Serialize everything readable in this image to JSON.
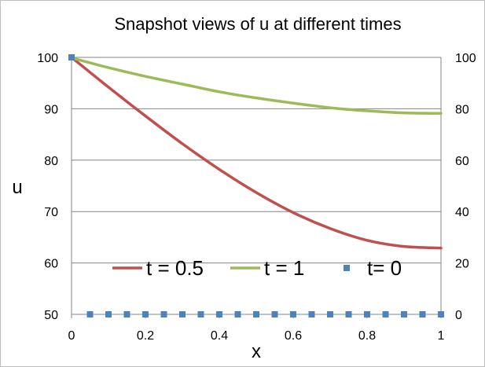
{
  "chart_data": {
    "type": "line",
    "title": "Snapshot views of u at different times",
    "xlabel": "x",
    "ylabel": "u",
    "xlim": [
      0,
      1
    ],
    "ylim": [
      50,
      100
    ],
    "xticks": [
      "0",
      "0.2",
      "0.4",
      "0.6",
      "0.8",
      "1"
    ],
    "yticks": [
      "50",
      "60",
      "70",
      "80",
      "90",
      "100"
    ],
    "y2ticks": [
      "0",
      "20",
      "40",
      "60",
      "80",
      "100"
    ],
    "grid": true,
    "legend": "bottom-center",
    "series": [
      {
        "name": "t = 0.5",
        "color": "#c0504d",
        "style": "line",
        "x": [
          0,
          0.1,
          0.2,
          0.3,
          0.4,
          0.5,
          0.6,
          0.7,
          0.8,
          0.9,
          1.0
        ],
        "y": [
          100,
          94.2,
          88.6,
          83.2,
          78.2,
          73.7,
          69.8,
          66.7,
          64.4,
          63.2,
          62.9
        ]
      },
      {
        "name": "t = 1",
        "color": "#9bbb59",
        "style": "line",
        "x": [
          0,
          0.1,
          0.2,
          0.3,
          0.4,
          0.5,
          0.6,
          0.7,
          0.8,
          0.9,
          1.0
        ],
        "y": [
          99.9,
          98.0,
          96.3,
          94.8,
          93.3,
          92.1,
          91.1,
          90.2,
          89.6,
          89.2,
          89.1
        ]
      },
      {
        "name": "t= 0",
        "color": "#4f81bd",
        "style": "marker",
        "x": [
          0,
          0.05,
          0.1,
          0.15,
          0.2,
          0.25,
          0.3,
          0.35,
          0.4,
          0.45,
          0.5,
          0.55,
          0.6,
          0.65,
          0.7,
          0.75,
          0.8,
          0.85,
          0.9,
          0.95,
          1.0
        ],
        "y": [
          100,
          50,
          50,
          50,
          50,
          50,
          50,
          50,
          50,
          50,
          50,
          50,
          50,
          50,
          50,
          50,
          50,
          50,
          50,
          50,
          50
        ]
      }
    ]
  }
}
